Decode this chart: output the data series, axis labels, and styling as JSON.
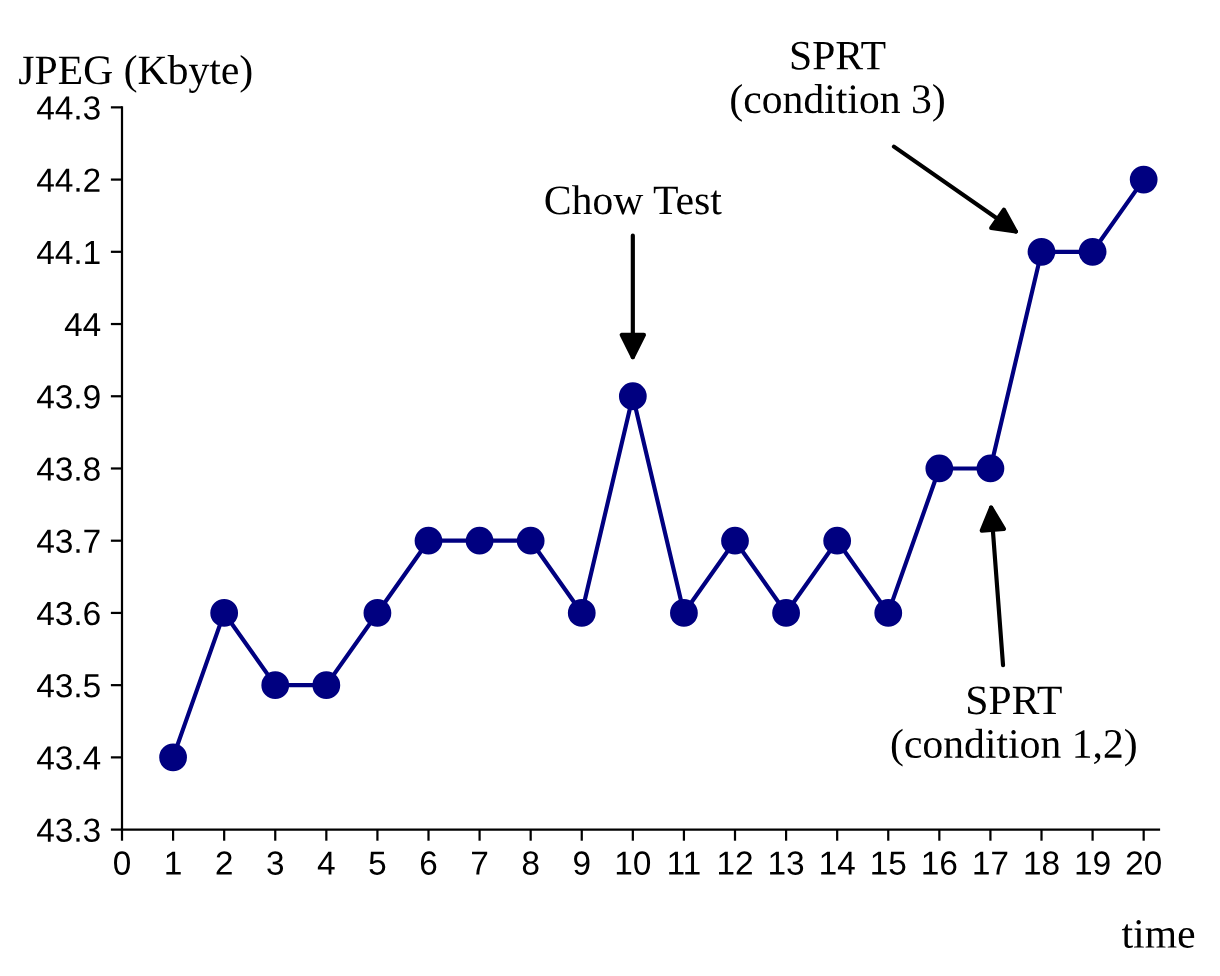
{
  "chart_data": {
    "type": "line",
    "x": [
      1,
      2,
      3,
      4,
      5,
      6,
      7,
      8,
      9,
      10,
      11,
      12,
      13,
      14,
      15,
      16,
      17,
      18,
      19,
      20
    ],
    "series": [
      {
        "color": "#000080",
        "values": [
          43.4,
          43.6,
          43.5,
          43.5,
          43.6,
          43.7,
          43.7,
          43.7,
          43.6,
          43.9,
          43.6,
          43.7,
          43.6,
          43.7,
          43.6,
          43.8,
          43.8,
          44.1,
          44.1,
          44.2
        ]
      }
    ],
    "marker": "circle",
    "line_style": "solid",
    "grid": false,
    "legend": false,
    "xlabel": "time",
    "ylabel": "JPEG (Kbyte)",
    "xlim": [
      0,
      20.3
    ],
    "xticks": [
      0,
      1,
      2,
      3,
      4,
      5,
      6,
      7,
      8,
      9,
      10,
      11,
      12,
      13,
      14,
      15,
      16,
      17,
      18,
      19,
      20
    ],
    "ylim": [
      43.3,
      44.3
    ],
    "yticks": [
      43.3,
      43.4,
      43.5,
      43.6,
      43.7,
      43.8,
      43.9,
      44,
      44.1,
      44.2,
      44.3
    ],
    "annotations": [
      "Chow Test",
      "SPRT\n(condition 3)",
      "SPRT\n(condition 1,2)"
    ]
  }
}
